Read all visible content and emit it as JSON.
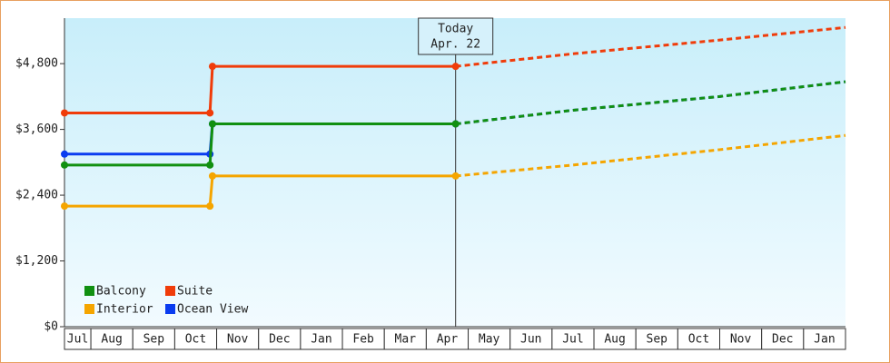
{
  "chart_data": {
    "type": "line",
    "x": [
      0.37,
      3.84,
      3.9,
      9.7
    ],
    "forecast_x": [
      9.7,
      12.5,
      16,
      19
    ],
    "xlim": [
      0.37,
      19
    ],
    "categories": [
      "Jul",
      "Aug",
      "Sep",
      "Oct",
      "Nov",
      "Dec",
      "Jan",
      "Feb",
      "Mar",
      "Apr",
      "May",
      "Jun",
      "Jul",
      "Aug",
      "Sep",
      "Oct",
      "Nov",
      "Dec",
      "Jan"
    ],
    "ylim": [
      0,
      5630
    ],
    "yticks": [
      {
        "value": 0,
        "label": "$0"
      },
      {
        "value": 1200,
        "label": "$1,200"
      },
      {
        "value": 2400,
        "label": "$2,400"
      },
      {
        "value": 3600,
        "label": "$3,600"
      },
      {
        "value": 4800,
        "label": "$4,800"
      }
    ],
    "series": [
      {
        "name": "Balcony",
        "color": "#119011",
        "values": [
          2950,
          2950,
          3700,
          3700
        ],
        "forecast": [
          3700,
          3950,
          4200,
          4470
        ]
      },
      {
        "name": "Suite",
        "color": "#f03c0a",
        "values": [
          3900,
          3900,
          4750,
          4750
        ],
        "forecast": [
          4750,
          4980,
          5230,
          5460
        ]
      },
      {
        "name": "Interior",
        "color": "#f5a500",
        "values": [
          2200,
          2200,
          2750,
          2750
        ],
        "forecast": [
          2750,
          2950,
          3230,
          3490
        ]
      },
      {
        "name": "Ocean View",
        "color": "#0a3cf0",
        "values": [
          3150,
          3150,
          3700,
          3700
        ],
        "forecast": [
          3700,
          3950,
          4200,
          4470
        ]
      }
    ],
    "annotation": {
      "x": 9.7,
      "lines": [
        "Today",
        "Apr. 22"
      ]
    },
    "legend": "bottom-left"
  }
}
